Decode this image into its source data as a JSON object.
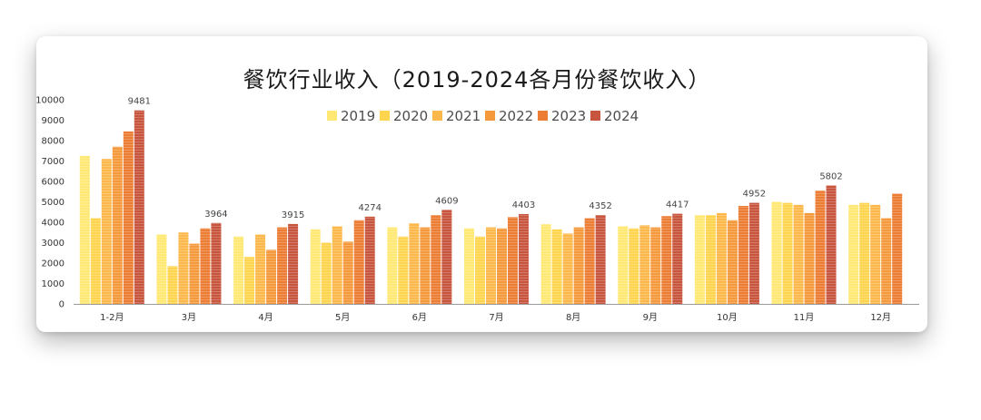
{
  "chart_data": {
    "type": "bar",
    "title": "餐饮行业收入（2019-2024各月份餐饮收入）",
    "categories": [
      "1-2月",
      "3月",
      "4月",
      "5月",
      "6月",
      "7月",
      "8月",
      "9月",
      "10月",
      "11月",
      "12月"
    ],
    "series": [
      {
        "name": "2019",
        "color": "#FFE873",
        "values": [
          7250,
          3400,
          3300,
          3650,
          3750,
          3700,
          3900,
          3800,
          4350,
          5000,
          4850
        ]
      },
      {
        "name": "2020",
        "color": "#FFD54F",
        "values": [
          4200,
          1850,
          2300,
          3000,
          3300,
          3300,
          3650,
          3700,
          4350,
          4950,
          4950
        ]
      },
      {
        "name": "2021",
        "color": "#FDB84C",
        "values": [
          7100,
          3500,
          3400,
          3800,
          3950,
          3750,
          3450,
          3850,
          4450,
          4850,
          4850
        ]
      },
      {
        "name": "2022",
        "color": "#F59A3C",
        "values": [
          7700,
          2950,
          2650,
          3050,
          3750,
          3700,
          3750,
          3750,
          4100,
          4450,
          4200
        ]
      },
      {
        "name": "2023",
        "color": "#EC7D34",
        "values": [
          8450,
          3700,
          3750,
          4100,
          4350,
          4250,
          4200,
          4300,
          4800,
          5550,
          5400
        ]
      },
      {
        "name": "2024",
        "color": "#C8553D",
        "values": [
          9481,
          3964,
          3915,
          4274,
          4609,
          4403,
          4352,
          4417,
          4952,
          5802,
          null
        ]
      }
    ],
    "data_labels": [
      "9481",
      "3964",
      "3915",
      "4274",
      "4609",
      "4403",
      "4352",
      "4417",
      "4952",
      "5802"
    ],
    "yticks": [
      "0",
      "1000",
      "2000",
      "3000",
      "4000",
      "5000",
      "6000",
      "7000",
      "8000",
      "9000",
      "10000"
    ],
    "ylim": [
      0,
      10000
    ],
    "xlabel": "",
    "ylabel": "",
    "grid": false,
    "legend_position": "top"
  }
}
